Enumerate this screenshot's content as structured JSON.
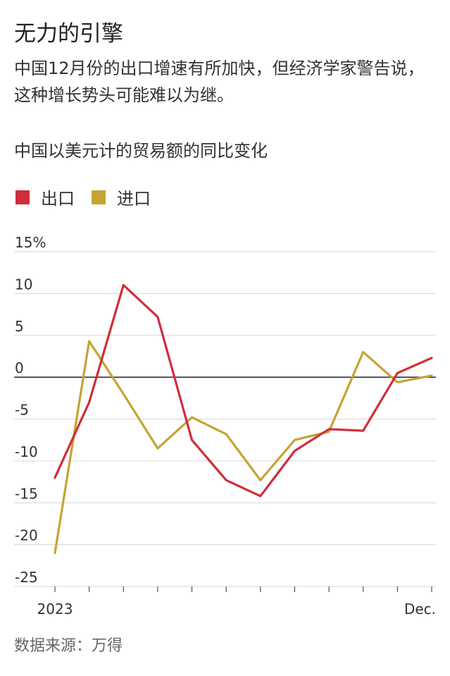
{
  "header": {
    "title": "无力的引擎",
    "subtitle": "中国12月份的出口增速有所加快，但经济学家警告说，这种增长势头可能难以为继。"
  },
  "chart_data": {
    "type": "line",
    "title": "中国以美元计的贸易额的同比变化",
    "x": [
      1,
      2,
      3,
      4,
      5,
      6,
      7,
      8,
      9,
      10,
      11,
      12
    ],
    "x_tick_labels": [
      "2023",
      "Dec."
    ],
    "series": [
      {
        "name": "出口",
        "color": "#cf2e3b",
        "values": [
          -12,
          -3,
          11,
          7.2,
          -7.5,
          -12.3,
          -14.2,
          -8.8,
          -6.2,
          -6.4,
          0.5,
          2.3
        ]
      },
      {
        "name": "进口",
        "color": "#c4a435",
        "values": [
          -21,
          4.3,
          -2,
          -8.5,
          -4.8,
          -6.8,
          -12.3,
          -7.5,
          -6.5,
          3,
          -0.6,
          0.2
        ]
      }
    ],
    "y_ticks": [
      "15%",
      "10",
      "5",
      "0",
      "-5",
      "-10",
      "-15",
      "-20",
      "-25"
    ],
    "ylim": [
      -25,
      15
    ],
    "grid": true
  },
  "footer": {
    "source": "数据来源：万得"
  }
}
